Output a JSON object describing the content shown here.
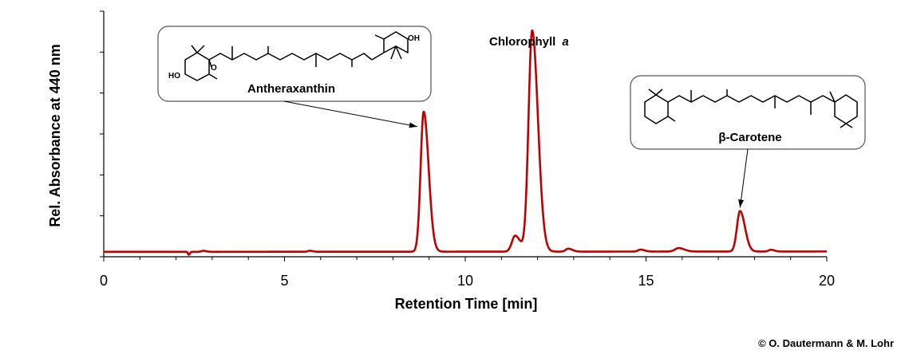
{
  "chart_data": {
    "type": "line",
    "title": "",
    "xlabel": "Retention Time [min]",
    "ylabel": "Rel. Absorbance at 440 nm",
    "xlim": [
      0,
      20
    ],
    "ylim": [
      0,
      1
    ],
    "x_ticks": [
      "0",
      "5",
      "10",
      "15",
      "20"
    ],
    "grid": false,
    "legend": "none",
    "series": [
      {
        "color": "#c00000",
        "baseline": 0.02,
        "peaks": [
          {
            "x": 2.35,
            "h": -0.012,
            "w": 0.02
          },
          {
            "x": 2.75,
            "h": 0.004,
            "w": 0.05
          },
          {
            "x": 5.7,
            "h": 0.004,
            "w": 0.05
          },
          {
            "x": 8.85,
            "h": 0.57,
            "w": 0.085
          },
          {
            "x": 11.38,
            "h": 0.065,
            "w": 0.09
          },
          {
            "x": 11.85,
            "h": 0.9,
            "w": 0.1
          },
          {
            "x": 12.85,
            "h": 0.012,
            "w": 0.07
          },
          {
            "x": 14.85,
            "h": 0.008,
            "w": 0.07
          },
          {
            "x": 15.9,
            "h": 0.014,
            "w": 0.1
          },
          {
            "x": 17.6,
            "h": 0.165,
            "w": 0.085
          },
          {
            "x": 18.45,
            "h": 0.007,
            "w": 0.06
          }
        ]
      }
    ],
    "annotations": [
      {
        "id": "antheraxanthin",
        "label": "Antheraxanthin",
        "x": 8.85,
        "y": 0.53
      },
      {
        "id": "chlorophyll",
        "label_main": "Chlorophyll",
        "label_italic": "a",
        "x": 11.85
      },
      {
        "id": "carotene",
        "label": "β-Carotene",
        "x": 17.6,
        "y": 0.2
      }
    ],
    "structure_atoms": {
      "antheraxanthin": [
        "HO",
        "O",
        "OH"
      ],
      "carotene": []
    }
  },
  "copyright": "© O. Dautermann & M. Lohr"
}
